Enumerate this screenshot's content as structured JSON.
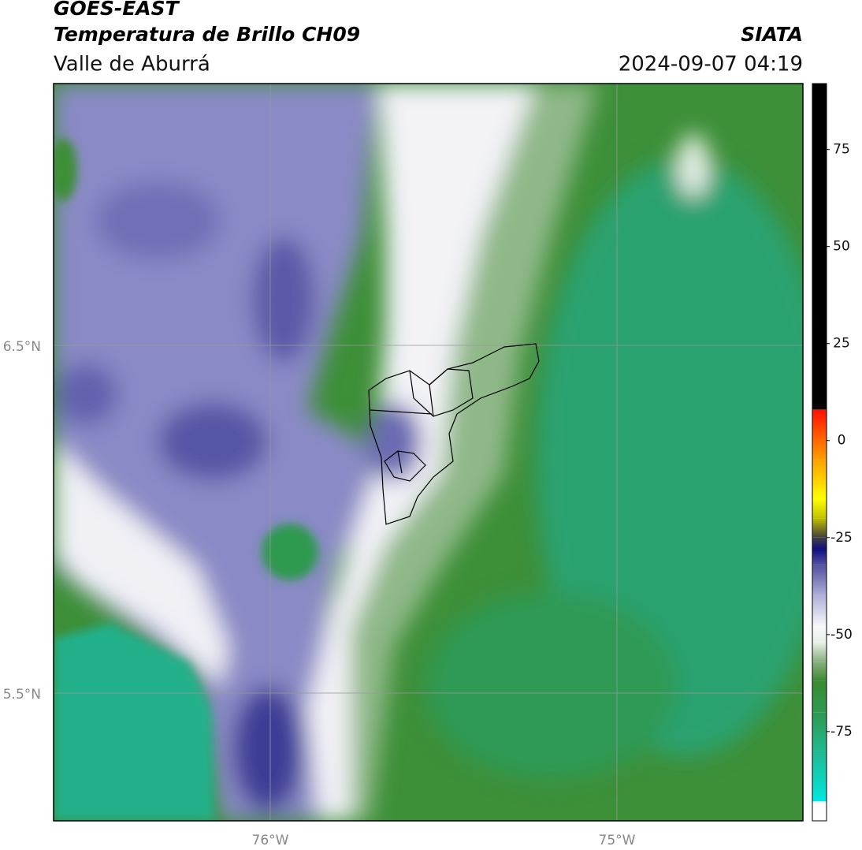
{
  "header": {
    "title": "GOES-EAST",
    "subtitle": "Temperatura de Brillo CH09",
    "region": "Valle de Aburrá",
    "source": "SIATA",
    "timestamp": "2024-09-07 04:19"
  },
  "map": {
    "lat_labels": [
      "6.5°N",
      "5.5°N"
    ],
    "lon_labels": [
      "76°W",
      "75°W"
    ]
  },
  "colorbar": {
    "range": [
      -98,
      92
    ],
    "ticks": [
      75,
      50,
      25,
      0,
      -25,
      -50,
      -75
    ],
    "colormap": [
      {
        "value": -98,
        "color": "#ffffff"
      },
      {
        "value": -93,
        "color": "#ffffff"
      },
      {
        "value": -93,
        "color": "#00e8e0"
      },
      {
        "value": -80,
        "color": "#20b890"
      },
      {
        "value": -70,
        "color": "#2e9a50"
      },
      {
        "value": -62,
        "color": "#3a8a30"
      },
      {
        "value": -57,
        "color": "#8ab080"
      },
      {
        "value": -52,
        "color": "#e8f0e8"
      },
      {
        "value": -48,
        "color": "#f8f8fc"
      },
      {
        "value": -40,
        "color": "#b0b0d8"
      },
      {
        "value": -32,
        "color": "#5050a0"
      },
      {
        "value": -28,
        "color": "#101080"
      },
      {
        "value": -25,
        "color": "#404040"
      },
      {
        "value": -20,
        "color": "#c0c000"
      },
      {
        "value": -15,
        "color": "#ffff00"
      },
      {
        "value": -5,
        "color": "#ffa000"
      },
      {
        "value": 8,
        "color": "#ff1000"
      },
      {
        "value": 8,
        "color": "#000000"
      },
      {
        "value": 92,
        "color": "#000000"
      }
    ]
  }
}
